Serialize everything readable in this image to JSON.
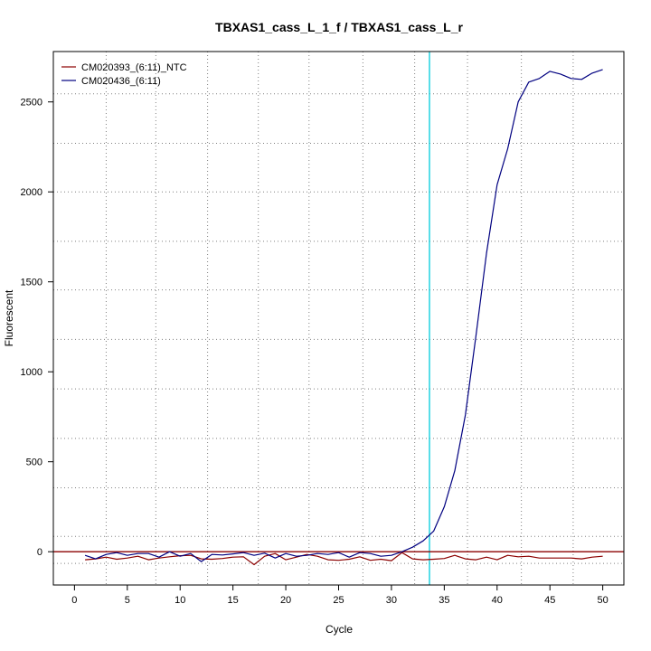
{
  "chart_data": {
    "type": "line",
    "title": "TBXAS1_cass_L_1_f / TBXAS1_cass_L_r",
    "xlabel": "Cycle",
    "ylabel": "Fluorescent",
    "xlim": [
      -2,
      52
    ],
    "ylim": [
      -185,
      2780
    ],
    "x_ticks": [
      0,
      5,
      10,
      15,
      20,
      25,
      30,
      35,
      40,
      45,
      50
    ],
    "y_ticks": [
      0,
      500,
      1000,
      1500,
      2000,
      2500
    ],
    "x_grid": [
      3,
      7.7,
      12.6,
      17.4,
      22.2,
      27.3,
      32.2,
      37.2,
      42.3,
      47.2
    ],
    "y_grid": [
      -65,
      85,
      355,
      630,
      905,
      1180,
      1455,
      1725,
      2000,
      2270,
      2545
    ],
    "grid": true,
    "legend_position": "top-left",
    "threshold": {
      "y": 0,
      "color": "#8B0000"
    },
    "cycle_marker": {
      "x": 33.6,
      "color": "#00CCDD"
    },
    "grid_color": "#808080",
    "series": [
      {
        "name": "CM020393_(6:11)_NTC",
        "color": "#8B0000",
        "x": [
          1,
          2,
          3,
          4,
          5,
          6,
          7,
          8,
          9,
          10,
          11,
          12,
          13,
          14,
          15,
          16,
          17,
          18,
          19,
          20,
          21,
          22,
          23,
          24,
          25,
          26,
          27,
          28,
          29,
          30,
          31,
          32,
          33,
          34,
          35,
          36,
          37,
          38,
          39,
          40,
          41,
          42,
          43,
          44,
          45,
          46,
          47,
          48,
          49,
          50
        ],
        "values": [
          -45,
          -40,
          -30,
          -42,
          -35,
          -25,
          -45,
          -35,
          -28,
          -22,
          -20,
          -40,
          -42,
          -38,
          -30,
          -28,
          -72,
          -25,
          -10,
          -45,
          -30,
          -15,
          -25,
          -45,
          -48,
          -42,
          -28,
          -48,
          -42,
          -50,
          -5,
          -40,
          -45,
          -42,
          -38,
          -20,
          -40,
          -45,
          -30,
          -45,
          -20,
          -28,
          -25,
          -35,
          -35,
          -35,
          -35,
          -40,
          -30,
          -25
        ]
      },
      {
        "name": "CM020436_(6:11)",
        "color": "#000080",
        "x": [
          1,
          2,
          3,
          4,
          5,
          6,
          7,
          8,
          9,
          10,
          11,
          12,
          13,
          14,
          15,
          16,
          17,
          18,
          19,
          20,
          21,
          22,
          23,
          24,
          25,
          26,
          27,
          28,
          29,
          30,
          31,
          32,
          33,
          34,
          35,
          36,
          37,
          38,
          39,
          40,
          41,
          42,
          43,
          44,
          45,
          46,
          47,
          48,
          49,
          50
        ],
        "values": [
          -20,
          -40,
          -15,
          -5,
          -20,
          -10,
          -10,
          -30,
          0,
          -25,
          -10,
          -55,
          -15,
          -18,
          -12,
          -5,
          -20,
          -8,
          -35,
          -10,
          -25,
          -20,
          -10,
          -15,
          -5,
          -30,
          -5,
          -10,
          -25,
          -20,
          0,
          25,
          60,
          115,
          250,
          450,
          760,
          1200,
          1660,
          2040,
          2240,
          2500,
          2610,
          2630,
          2670,
          2655,
          2630,
          2625,
          2660,
          2680
        ]
      }
    ]
  }
}
